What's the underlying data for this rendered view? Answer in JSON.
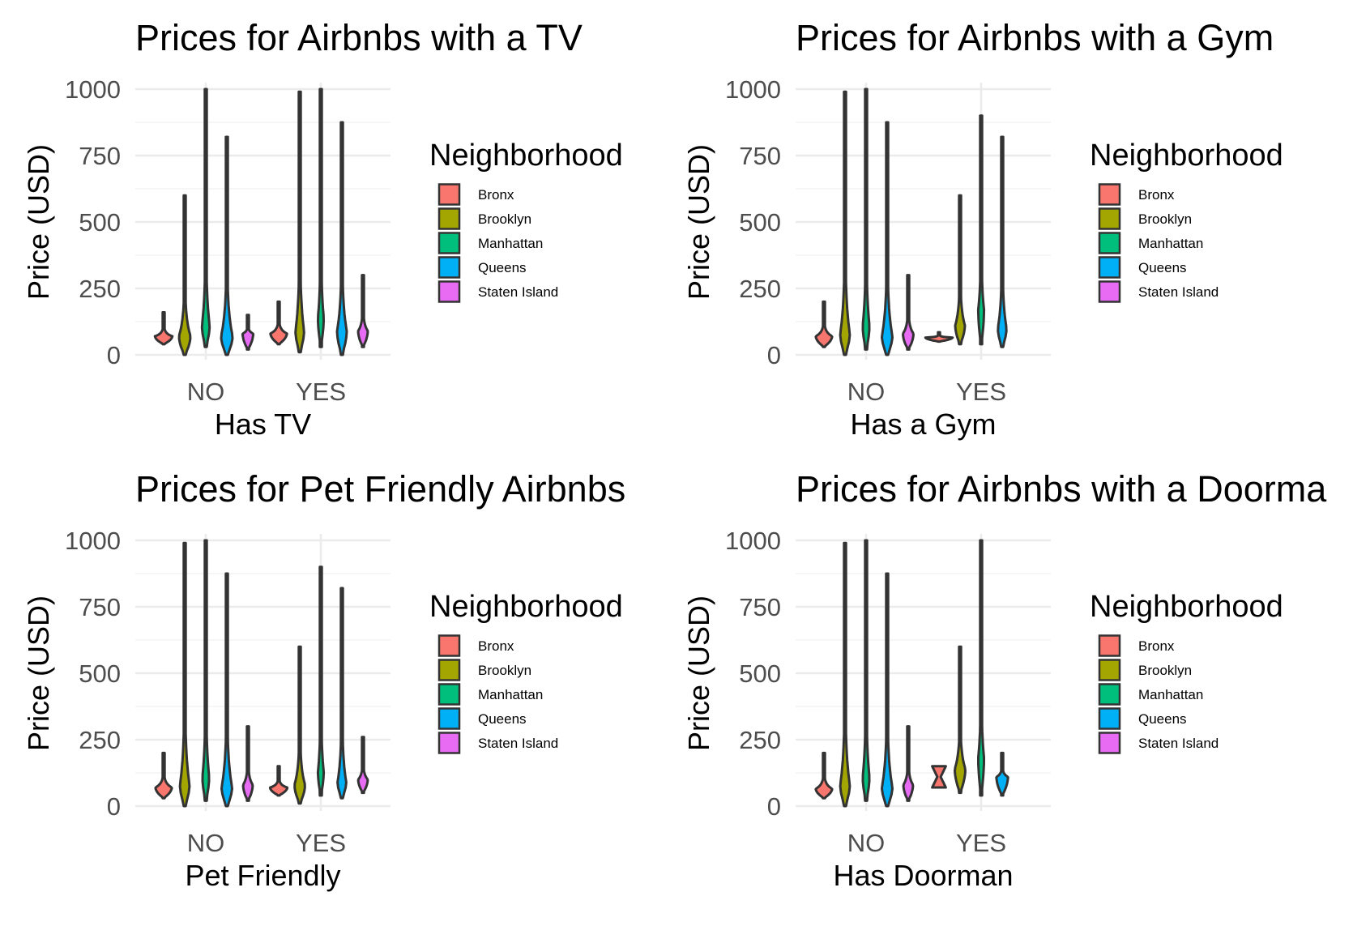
{
  "colors": {
    "Bronx": "#F8766D",
    "Brooklyn": "#A3A500",
    "Manhattan": "#00BF7D",
    "Queens": "#00B0F6",
    "Staten Island": "#E76BF3"
  },
  "chart_data": [
    {
      "type": "violin",
      "title": "Prices for Airbnbs with a TV",
      "xlabel": "Has TV",
      "ylabel": "Price (USD)",
      "categories": [
        "NO",
        "YES"
      ],
      "yticks": [
        "0",
        "250",
        "500",
        "750",
        "1000"
      ],
      "ylim": [
        0,
        1000
      ],
      "legend": {
        "title": "Neighborhood",
        "position": "right",
        "entries": [
          "Bronx",
          "Brooklyn",
          "Manhattan",
          "Queens",
          "Staten Island"
        ]
      },
      "grid": true,
      "series": [
        {
          "name": "Bronx",
          "groups": [
            {
              "x": "NO",
              "min": 40,
              "max": 160,
              "mode": 70,
              "width": 0.9
            },
            {
              "x": "YES",
              "min": 40,
              "max": 200,
              "mode": 80,
              "width": 0.85
            }
          ]
        },
        {
          "name": "Brooklyn",
          "groups": [
            {
              "x": "NO",
              "min": 0,
              "max": 600,
              "mode": 70,
              "width": 0.6
            },
            {
              "x": "YES",
              "min": 10,
              "max": 990,
              "mode": 90,
              "width": 0.45
            }
          ]
        },
        {
          "name": "Manhattan",
          "groups": [
            {
              "x": "NO",
              "min": 30,
              "max": 1000,
              "mode": 110,
              "width": 0.4
            },
            {
              "x": "YES",
              "min": 30,
              "max": 1000,
              "mode": 140,
              "width": 0.3
            }
          ]
        },
        {
          "name": "Queens",
          "groups": [
            {
              "x": "NO",
              "min": 0,
              "max": 820,
              "mode": 70,
              "width": 0.6
            },
            {
              "x": "YES",
              "min": 0,
              "max": 875,
              "mode": 90,
              "width": 0.5
            }
          ]
        },
        {
          "name": "Staten Island",
          "groups": [
            {
              "x": "NO",
              "min": 20,
              "max": 150,
              "mode": 80,
              "width": 0.55
            },
            {
              "x": "YES",
              "min": 30,
              "max": 300,
              "mode": 90,
              "width": 0.5
            }
          ]
        }
      ]
    },
    {
      "type": "violin",
      "title": "Prices for Airbnbs with a Gym",
      "xlabel": "Has a Gym",
      "ylabel": "Price (USD)",
      "categories": [
        "NO",
        "YES"
      ],
      "yticks": [
        "0",
        "250",
        "500",
        "750",
        "1000"
      ],
      "ylim": [
        0,
        1000
      ],
      "legend": {
        "title": "Neighborhood",
        "position": "right",
        "entries": [
          "Bronx",
          "Brooklyn",
          "Manhattan",
          "Queens",
          "Staten Island"
        ]
      },
      "grid": true,
      "series": [
        {
          "name": "Bronx",
          "groups": [
            {
              "x": "NO",
              "min": 30,
              "max": 200,
              "mode": 70,
              "width": 0.85
            },
            {
              "x": "YES",
              "min": 50,
              "max": 85,
              "mode": 65,
              "width": 1.4
            }
          ]
        },
        {
          "name": "Brooklyn",
          "groups": [
            {
              "x": "NO",
              "min": 0,
              "max": 990,
              "mode": 80,
              "width": 0.5
            },
            {
              "x": "YES",
              "min": 40,
              "max": 600,
              "mode": 110,
              "width": 0.5
            }
          ]
        },
        {
          "name": "Manhattan",
          "groups": [
            {
              "x": "NO",
              "min": 20,
              "max": 1000,
              "mode": 110,
              "width": 0.35
            },
            {
              "x": "YES",
              "min": 40,
              "max": 900,
              "mode": 170,
              "width": 0.3
            }
          ]
        },
        {
          "name": "Queens",
          "groups": [
            {
              "x": "NO",
              "min": 0,
              "max": 875,
              "mode": 70,
              "width": 0.55
            },
            {
              "x": "YES",
              "min": 30,
              "max": 820,
              "mode": 100,
              "width": 0.45
            }
          ]
        },
        {
          "name": "Staten Island",
          "groups": [
            {
              "x": "NO",
              "min": 20,
              "max": 300,
              "mode": 80,
              "width": 0.55
            }
          ]
        }
      ]
    },
    {
      "type": "violin",
      "title": "Prices for Pet Friendly Airbnbs",
      "xlabel": "Pet Friendly",
      "ylabel": "Price (USD)",
      "categories": [
        "NO",
        "YES"
      ],
      "yticks": [
        "0",
        "250",
        "500",
        "750",
        "1000"
      ],
      "ylim": [
        0,
        1000
      ],
      "legend": {
        "title": "Neighborhood",
        "position": "right",
        "entries": [
          "Bronx",
          "Brooklyn",
          "Manhattan",
          "Queens",
          "Staten Island"
        ]
      },
      "grid": true,
      "series": [
        {
          "name": "Bronx",
          "groups": [
            {
              "x": "NO",
              "min": 30,
              "max": 200,
              "mode": 70,
              "width": 0.85
            },
            {
              "x": "YES",
              "min": 40,
              "max": 150,
              "mode": 70,
              "width": 0.9
            }
          ]
        },
        {
          "name": "Brooklyn",
          "groups": [
            {
              "x": "NO",
              "min": 0,
              "max": 990,
              "mode": 80,
              "width": 0.5
            },
            {
              "x": "YES",
              "min": 10,
              "max": 600,
              "mode": 80,
              "width": 0.55
            }
          ]
        },
        {
          "name": "Manhattan",
          "groups": [
            {
              "x": "NO",
              "min": 20,
              "max": 1000,
              "mode": 110,
              "width": 0.35
            },
            {
              "x": "YES",
              "min": 40,
              "max": 900,
              "mode": 130,
              "width": 0.3
            }
          ]
        },
        {
          "name": "Queens",
          "groups": [
            {
              "x": "NO",
              "min": 0,
              "max": 875,
              "mode": 70,
              "width": 0.55
            },
            {
              "x": "YES",
              "min": 30,
              "max": 820,
              "mode": 90,
              "width": 0.45
            }
          ]
        },
        {
          "name": "Staten Island",
          "groups": [
            {
              "x": "NO",
              "min": 20,
              "max": 300,
              "mode": 80,
              "width": 0.5
            },
            {
              "x": "YES",
              "min": 50,
              "max": 260,
              "mode": 100,
              "width": 0.5
            }
          ]
        }
      ]
    },
    {
      "type": "violin",
      "title": "Prices for Airbnbs with a Doorma",
      "xlabel": "Has Doorman",
      "ylabel": "Price (USD)",
      "categories": [
        "NO",
        "YES"
      ],
      "yticks": [
        "0",
        "250",
        "500",
        "750",
        "1000"
      ],
      "ylim": [
        0,
        1000
      ],
      "legend": {
        "title": "Neighborhood",
        "position": "right",
        "entries": [
          "Bronx",
          "Brooklyn",
          "Manhattan",
          "Queens",
          "Staten Island"
        ]
      },
      "grid": true,
      "series": [
        {
          "name": "Bronx",
          "groups": [
            {
              "x": "NO",
              "min": 30,
              "max": 200,
              "mode": 65,
              "width": 0.85
            },
            {
              "x": "YES",
              "min": 70,
              "max": 150,
              "mode": 110,
              "width": 0.7,
              "shape": "hourglass"
            }
          ]
        },
        {
          "name": "Brooklyn",
          "groups": [
            {
              "x": "NO",
              "min": 0,
              "max": 990,
              "mode": 80,
              "width": 0.5
            },
            {
              "x": "YES",
              "min": 50,
              "max": 600,
              "mode": 140,
              "width": 0.55
            }
          ]
        },
        {
          "name": "Manhattan",
          "groups": [
            {
              "x": "NO",
              "min": 20,
              "max": 1000,
              "mode": 110,
              "width": 0.35
            },
            {
              "x": "YES",
              "min": 40,
              "max": 1000,
              "mode": 180,
              "width": 0.3
            }
          ]
        },
        {
          "name": "Queens",
          "groups": [
            {
              "x": "NO",
              "min": 0,
              "max": 875,
              "mode": 70,
              "width": 0.55
            },
            {
              "x": "YES",
              "min": 40,
              "max": 200,
              "mode": 110,
              "width": 0.6
            }
          ]
        },
        {
          "name": "Staten Island",
          "groups": [
            {
              "x": "NO",
              "min": 20,
              "max": 300,
              "mode": 80,
              "width": 0.5
            }
          ]
        }
      ]
    }
  ]
}
